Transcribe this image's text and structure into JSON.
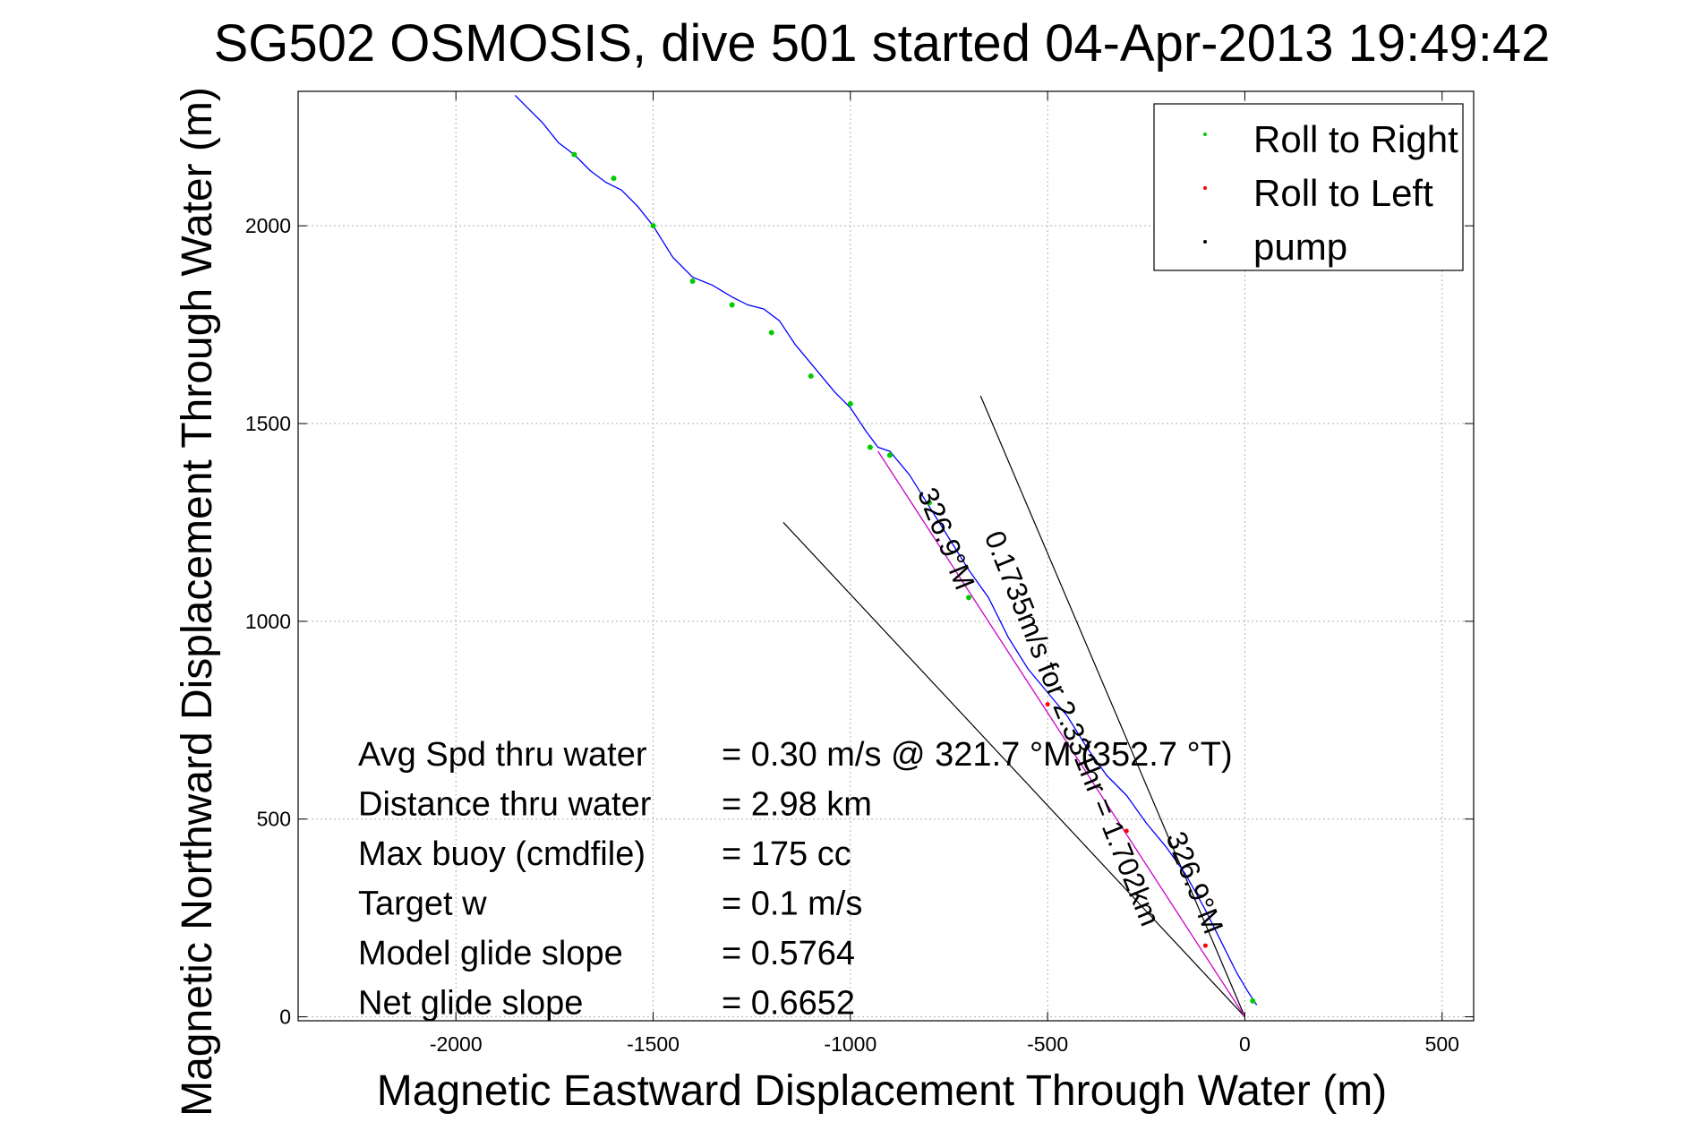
{
  "chart_data": {
    "type": "line",
    "title": "SG502 OSMOSIS, dive 501 started 04-Apr-2013 19:49:42",
    "xlabel": "Magnetic Eastward Displacement Through Water (m)",
    "ylabel": "Magnetic Northward Displacement Through Water (m)",
    "xlim": [
      -2400,
      580
    ],
    "ylim": [
      -10,
      2340
    ],
    "xticks": [
      -2000,
      -1500,
      -1000,
      -500,
      0,
      500
    ],
    "yticks": [
      0,
      500,
      1000,
      1500,
      2000
    ],
    "grid": true,
    "legend_position": "top-right",
    "legend": [
      {
        "label": "Roll to Right",
        "color": "#00cc00"
      },
      {
        "label": "Roll to Left",
        "color": "#ff0000"
      },
      {
        "label": "pump",
        "color": "#000000"
      }
    ],
    "colors": {
      "track": "#0000ff",
      "roll_right": "#00cc00",
      "roll_left": "#ff0000",
      "pump": "#000000",
      "current_line": "#cc00cc",
      "reference_lines": "#000000",
      "grid": "#b0b0b0"
    },
    "series": [
      {
        "name": "track",
        "x": [
          30,
          10,
          -20,
          -60,
          -100,
          -150,
          -200,
          -250,
          -300,
          -350,
          -400,
          -450,
          -500,
          -550,
          -600,
          -650,
          -700,
          -750,
          -800,
          -850,
          -900,
          -930,
          -960,
          -1000,
          -1040,
          -1090,
          -1140,
          -1180,
          -1220,
          -1260,
          -1300,
          -1350,
          -1400,
          -1450,
          -1500,
          -1540,
          -1580,
          -1620,
          -1660,
          -1700,
          -1740,
          -1780,
          -1820,
          -1850
        ],
        "y": [
          30,
          60,
          110,
          190,
          270,
          360,
          430,
          490,
          560,
          610,
          680,
          760,
          820,
          880,
          960,
          1060,
          1130,
          1210,
          1290,
          1370,
          1430,
          1440,
          1480,
          1540,
          1580,
          1640,
          1700,
          1760,
          1790,
          1800,
          1820,
          1850,
          1870,
          1920,
          2000,
          2050,
          2090,
          2110,
          2140,
          2180,
          2210,
          2260,
          2300,
          2330
        ]
      },
      {
        "name": "Roll to Right",
        "x": [
          20,
          -1700,
          -1600,
          -1500,
          -1400,
          -1300,
          -1200,
          -1100,
          -1000,
          -950,
          -900,
          -800,
          -700
        ],
        "y": [
          40,
          2180,
          2120,
          2000,
          1860,
          1800,
          1730,
          1620,
          1550,
          1440,
          1420,
          1300,
          1060
        ]
      },
      {
        "name": "Roll to Left",
        "x": [
          -100,
          -300,
          -500
        ],
        "y": [
          180,
          470,
          790
        ]
      }
    ],
    "current_line": {
      "x": [
        0,
        -930
      ],
      "y": [
        0,
        1430
      ]
    },
    "reference_lines": [
      {
        "x": [
          0,
          -1170
        ],
        "y": [
          0,
          1250
        ]
      },
      {
        "x": [
          0,
          -670
        ],
        "y": [
          0,
          1570
        ]
      }
    ],
    "annotations": [
      {
        "text": "0.1735m/s for 2.331hr = 1.702km",
        "x": -460,
        "y": 720,
        "angle_deg": 68
      },
      {
        "text": "326.9°M",
        "x": -780,
        "y": 1200,
        "angle_deg": 68
      },
      {
        "text": "326.9°M",
        "x": -150,
        "y": 330,
        "angle_deg": 68
      }
    ],
    "stats": [
      {
        "label": "Avg Spd thru water",
        "value": "=  0.30 m/s @ 321.7 °M (352.7 °T)"
      },
      {
        "label": "Distance thru water",
        "value": "=  2.98 km"
      },
      {
        "label": "Max buoy (cmdfile)",
        "value": "= 175 cc"
      },
      {
        "label": "Target w",
        "value": "= 0.1 m/s"
      },
      {
        "label": "Model glide slope",
        "value": "= 0.5764"
      },
      {
        "label": "Net glide slope",
        "value": "= 0.6652"
      }
    ]
  }
}
